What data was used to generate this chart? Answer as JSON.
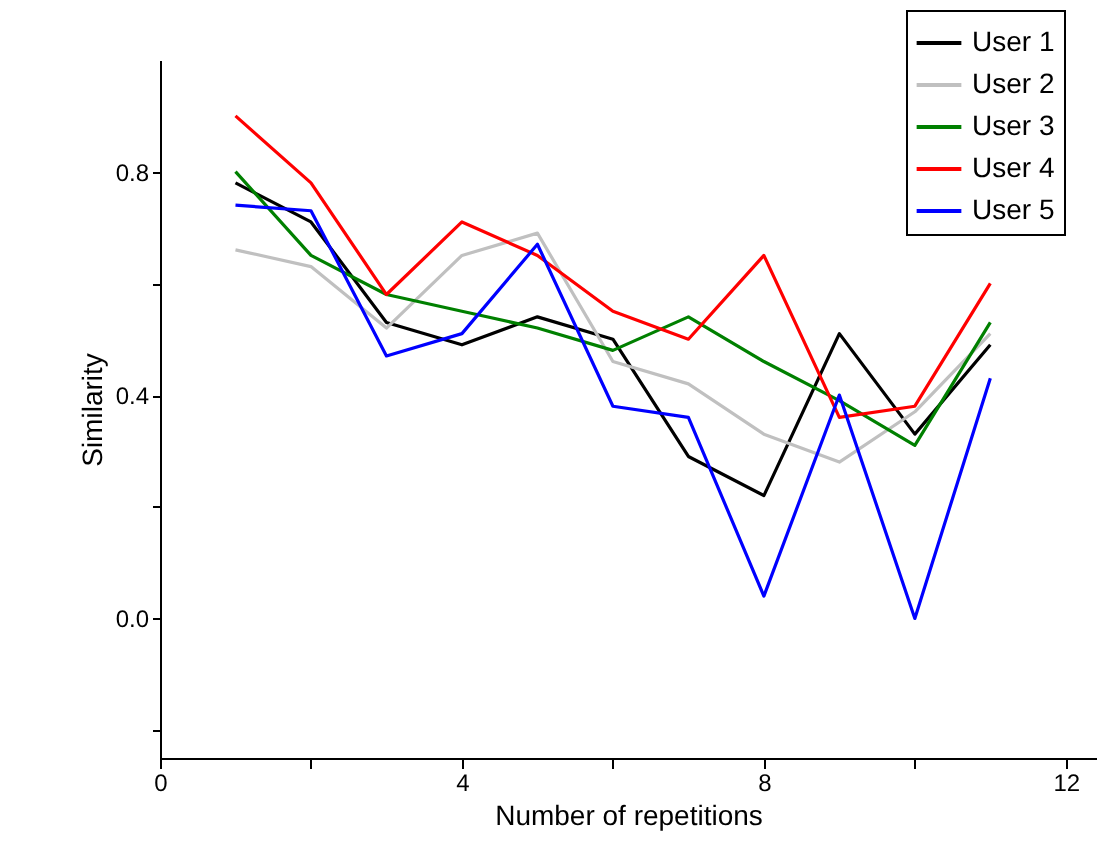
{
  "chart_data": {
    "type": "line",
    "xlabel": "Number of repetitions",
    "ylabel": "Similarity",
    "x": [
      1,
      2,
      3,
      4,
      5,
      6,
      7,
      8,
      9,
      10,
      11
    ],
    "series": [
      {
        "name": "User 1",
        "color": "#000000",
        "values": [
          0.78,
          0.71,
          0.53,
          0.49,
          0.54,
          0.5,
          0.29,
          0.22,
          0.51,
          0.33,
          0.49
        ]
      },
      {
        "name": "User 2",
        "color": "#c0c0c0",
        "values": [
          0.66,
          0.63,
          0.52,
          0.65,
          0.69,
          0.46,
          0.42,
          0.33,
          0.28,
          0.37,
          0.51
        ]
      },
      {
        "name": "User 3",
        "color": "#008000",
        "values": [
          0.8,
          0.65,
          0.58,
          0.55,
          0.52,
          0.48,
          0.54,
          0.46,
          0.39,
          0.31,
          0.53
        ]
      },
      {
        "name": "User 4",
        "color": "#ff0000",
        "values": [
          0.9,
          0.78,
          0.58,
          0.71,
          0.65,
          0.55,
          0.5,
          0.65,
          0.36,
          0.38,
          0.6
        ]
      },
      {
        "name": "User 5",
        "color": "#0000ff",
        "values": [
          0.74,
          0.73,
          0.47,
          0.51,
          0.67,
          0.38,
          0.36,
          0.04,
          0.4,
          0.0,
          0.43
        ]
      }
    ],
    "xlim": [
      0,
      12.4
    ],
    "ylim": [
      -0.25,
      1.0
    ],
    "xticks": [
      0,
      {
        "value": 2,
        "label": null
      },
      4,
      {
        "value": 6,
        "label": null
      },
      8,
      {
        "value": 10,
        "label": null
      },
      12
    ],
    "yticks": [
      {
        "value": -0.2,
        "label": null
      },
      {
        "value": 0.0,
        "label": "0.0"
      },
      {
        "value": 0.2,
        "label": null
      },
      {
        "value": 0.4,
        "label": "0.4"
      },
      {
        "value": 0.6,
        "label": null
      },
      {
        "value": 0.8,
        "label": "0.8"
      }
    ],
    "grid": false,
    "legend": "top right",
    "marker": "none",
    "line_style": "solid"
  }
}
